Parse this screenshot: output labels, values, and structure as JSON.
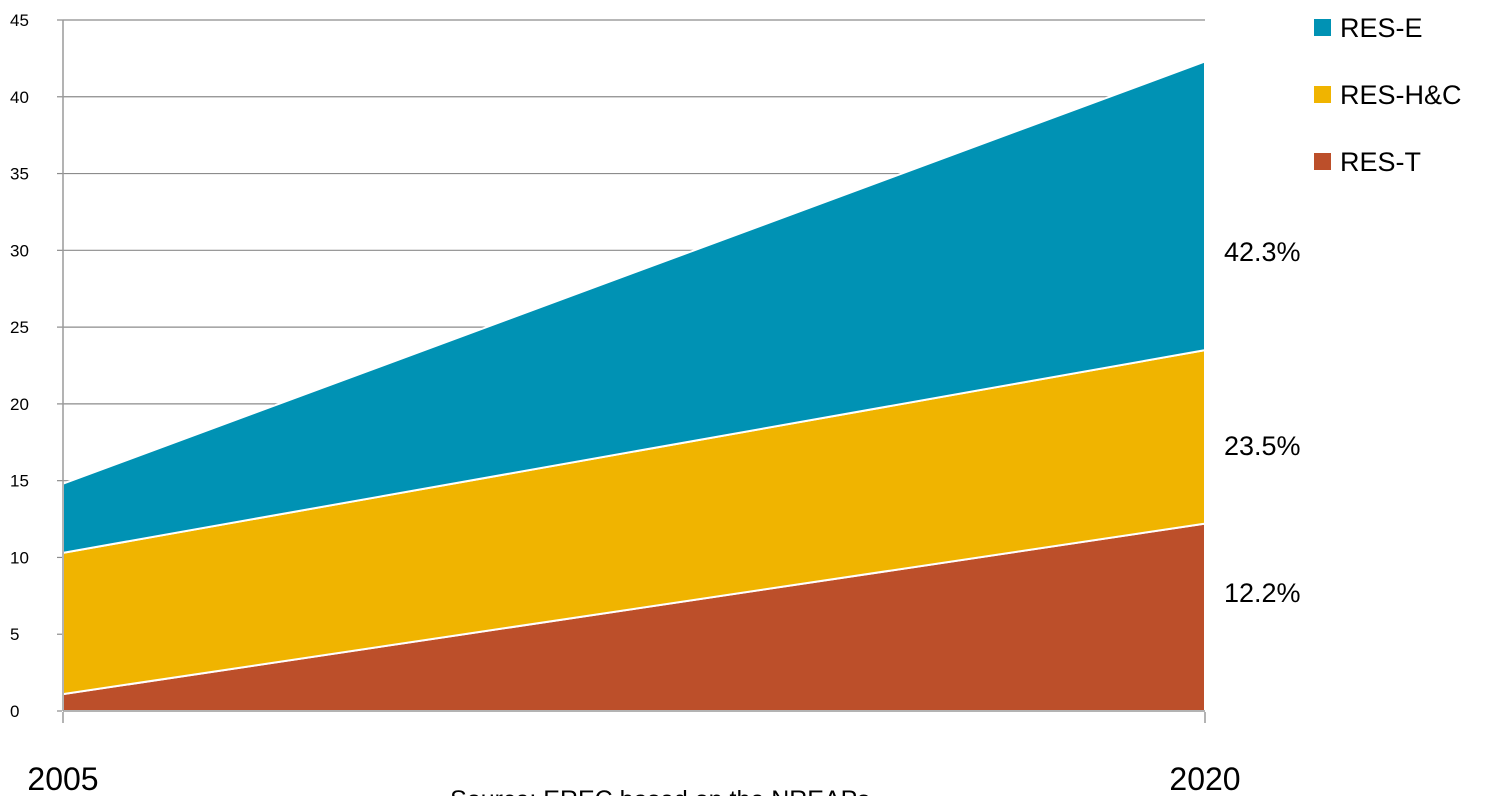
{
  "chart_data": {
    "type": "area",
    "stacked": true,
    "x": [
      "2005",
      "2020"
    ],
    "y_ticks": [
      "0",
      "5",
      "10",
      "15",
      "20",
      "25",
      "30",
      "35",
      "40",
      "45"
    ],
    "ylim": [
      0,
      45
    ],
    "grid": true,
    "legend_position": "top-right",
    "series": [
      {
        "name": "RES-T",
        "values": [
          1.1,
          12.2
        ],
        "color": "#bc4f2a"
      },
      {
        "name": "RES-H&C",
        "values": [
          10.3,
          23.5
        ],
        "color": "#f0b400"
      },
      {
        "name": "RES-E",
        "values": [
          14.8,
          42.3
        ],
        "color": "#0092b4"
      }
    ],
    "end_labels": [
      "12.2%",
      "23.5%",
      "42.3%"
    ],
    "legend": [
      "RES-E",
      "RES-H&C",
      "RES-T"
    ],
    "source": "Source: EREC based on the NREAPs"
  }
}
